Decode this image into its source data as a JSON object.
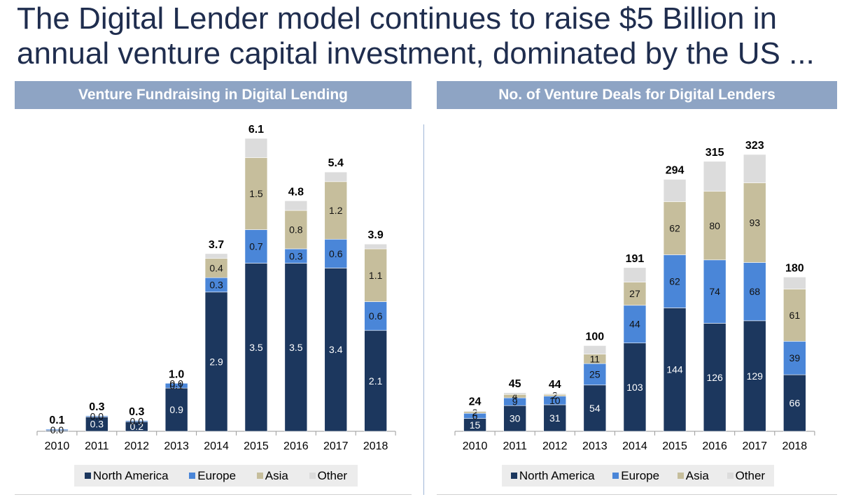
{
  "title": "The Digital Lender model continues to raise $5 Billion in annual venture capital investment, dominated by the US ...",
  "colors": {
    "north_america": "#1c375e",
    "europe": "#4a86d8",
    "asia": "#c6be9c",
    "other": "#dcdcdc",
    "header_bg": "#8ea4c4",
    "title_text": "#1f2d4e"
  },
  "chart_data": [
    {
      "type": "bar",
      "stacked": true,
      "title": "Venture Fundraising in Digital Lending",
      "categories": [
        "2010",
        "2011",
        "2012",
        "2013",
        "2014",
        "2015",
        "2016",
        "2017",
        "2018"
      ],
      "series": [
        {
          "name": "North America",
          "values": [
            0.0,
            0.3,
            0.2,
            0.9,
            2.9,
            3.5,
            3.5,
            3.4,
            2.1
          ],
          "labels": [
            "0.0",
            "0.3",
            "0.2",
            "0.9",
            "2.9",
            "3.5",
            "3.5",
            "3.4",
            "2.1"
          ]
        },
        {
          "name": "Europe",
          "values": [
            0.0,
            0.0,
            0.0,
            0.1,
            0.3,
            0.7,
            0.3,
            0.6,
            0.6
          ],
          "labels": [
            "0.0",
            "0.0",
            "0.0",
            "0.1",
            "0.3",
            "0.7",
            "0.3",
            "0.6",
            "0.6"
          ]
        },
        {
          "name": "Asia",
          "values": [
            0.0,
            0.0,
            0.0,
            0.0,
            0.4,
            1.5,
            0.8,
            1.2,
            1.1
          ],
          "labels": [
            "",
            "",
            "",
            "0.0",
            "0.4",
            "1.5",
            "0.8",
            "1.2",
            "1.1"
          ]
        },
        {
          "name": "Other",
          "values": [
            0.0,
            0.0,
            0.0,
            0.0,
            0.1,
            0.4,
            0.2,
            0.2,
            0.1
          ],
          "labels": [
            "",
            "",
            "",
            "",
            "",
            "",
            "",
            "",
            ""
          ]
        }
      ],
      "totals": [
        "0.1",
        "0.3",
        "0.3",
        "1.0",
        "3.7",
        "6.1",
        "4.8",
        "5.4",
        "3.9"
      ],
      "ylim": [
        0,
        6.1
      ],
      "grid": false,
      "legend": "bottom"
    },
    {
      "type": "bar",
      "stacked": true,
      "title": "No. of Venture Deals for Digital Lenders",
      "categories": [
        "2010",
        "2011",
        "2012",
        "2013",
        "2014",
        "2015",
        "2016",
        "2017",
        "2018"
      ],
      "series": [
        {
          "name": "North America",
          "values": [
            15,
            30,
            31,
            54,
            103,
            144,
            126,
            129,
            66
          ],
          "labels": [
            "15",
            "30",
            "31",
            "54",
            "103",
            "144",
            "126",
            "129",
            "66"
          ]
        },
        {
          "name": "Europe",
          "values": [
            6,
            9,
            10,
            25,
            44,
            62,
            74,
            68,
            39
          ],
          "labels": [
            "6",
            "9",
            "10",
            "25",
            "44",
            "62",
            "74",
            "68",
            "39"
          ]
        },
        {
          "name": "Asia",
          "values": [
            2,
            4,
            2,
            11,
            27,
            62,
            80,
            93,
            61
          ],
          "labels": [
            "2",
            "4",
            "2",
            "11",
            "27",
            "62",
            "80",
            "93",
            "61"
          ]
        },
        {
          "name": "Other",
          "values": [
            1,
            2,
            1,
            10,
            17,
            26,
            35,
            33,
            14
          ],
          "labels": [
            "",
            "",
            "",
            "",
            "",
            "",
            "",
            "",
            ""
          ]
        }
      ],
      "totals": [
        "24",
        "45",
        "44",
        "100",
        "191",
        "294",
        "315",
        "323",
        "180"
      ],
      "ylim": [
        0,
        323
      ],
      "grid": false,
      "legend": "bottom"
    }
  ]
}
